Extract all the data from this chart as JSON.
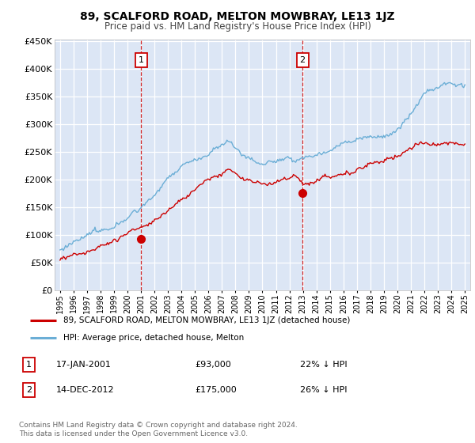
{
  "title": "89, SCALFORD ROAD, MELTON MOWBRAY, LE13 1JZ",
  "subtitle": "Price paid vs. HM Land Registry's House Price Index (HPI)",
  "plot_bg_color": "#dce6f5",
  "fig_bg_color": "#ffffff",
  "ylim": [
    0,
    450000
  ],
  "yticks": [
    0,
    50000,
    100000,
    150000,
    200000,
    250000,
    300000,
    350000,
    400000,
    450000
  ],
  "ytick_labels": [
    "£0",
    "£50K",
    "£100K",
    "£150K",
    "£200K",
    "£250K",
    "£300K",
    "£350K",
    "£400K",
    "£450K"
  ],
  "hpi_color": "#6baed6",
  "price_color": "#cc0000",
  "marker1_year": 2001.05,
  "marker1_price": 93000,
  "marker1_label": "17-JAN-2001",
  "marker1_price_str": "£93,000",
  "marker1_pct": "22% ↓ HPI",
  "marker2_year": 2012.96,
  "marker2_price": 175000,
  "marker2_label": "14-DEC-2012",
  "marker2_price_str": "£175,000",
  "marker2_pct": "26% ↓ HPI",
  "legend_line1": "89, SCALFORD ROAD, MELTON MOWBRAY, LE13 1JZ (detached house)",
  "legend_line2": "HPI: Average price, detached house, Melton",
  "footer": "Contains HM Land Registry data © Crown copyright and database right 2024.\nThis data is licensed under the Open Government Licence v3.0."
}
